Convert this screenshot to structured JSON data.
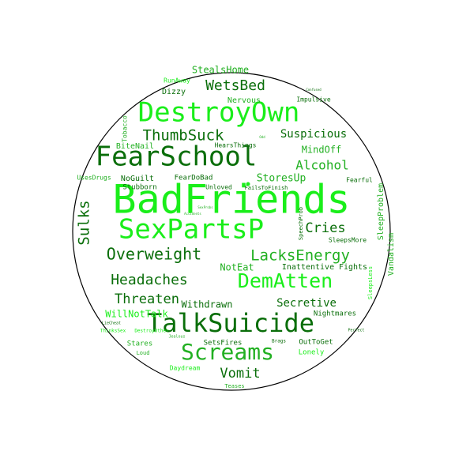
{
  "colors": {
    "bright": "#1aee1a",
    "mid": "#22b022",
    "dark": "#0a6e0a",
    "outline": "#000000"
  },
  "words": [
    {
      "text": "BadFriends",
      "color": "bright"
    },
    {
      "text": "DestroyOwn",
      "color": "bright"
    },
    {
      "text": "FearSchool",
      "color": "dark"
    },
    {
      "text": "SexPartsP",
      "color": "bright"
    },
    {
      "text": "TalkSuicide",
      "color": "dark"
    },
    {
      "text": "Screams",
      "color": "mid"
    },
    {
      "text": "DemAtten",
      "color": "bright"
    },
    {
      "text": "LacksEnergy",
      "color": "mid"
    },
    {
      "text": "Overweight",
      "color": "dark"
    },
    {
      "text": "ThumbSuck",
      "color": "dark"
    },
    {
      "text": "WetsBed",
      "color": "dark"
    },
    {
      "text": "Headaches",
      "color": "dark"
    },
    {
      "text": "Threaten",
      "color": "dark"
    },
    {
      "text": "Cries",
      "color": "dark"
    },
    {
      "text": "Alcohol",
      "color": "mid"
    },
    {
      "text": "Sulks",
      "color": "dark"
    },
    {
      "text": "Vomit",
      "color": "dark"
    },
    {
      "text": "Suspicious",
      "color": "dark"
    },
    {
      "text": "Secretive",
      "color": "dark"
    },
    {
      "text": "StoresUp",
      "color": "mid"
    },
    {
      "text": "MindOff",
      "color": "mid"
    },
    {
      "text": "WillNotTalk",
      "color": "bright"
    },
    {
      "text": "Withdrawn",
      "color": "dark"
    },
    {
      "text": "StealsHome",
      "color": "mid"
    },
    {
      "text": "Nervous",
      "color": "mid"
    },
    {
      "text": "Dizzy",
      "color": "dark"
    },
    {
      "text": "Impulsive",
      "color": "dark"
    },
    {
      "text": "Tobacco",
      "color": "mid"
    },
    {
      "text": "BiteNail",
      "color": "mid"
    },
    {
      "text": "HearsThings",
      "color": "dark"
    },
    {
      "text": "NoGuilt",
      "color": "dark"
    },
    {
      "text": "FearDoBad",
      "color": "dark"
    },
    {
      "text": "Stubborn",
      "color": "dark"
    },
    {
      "text": "Unloved",
      "color": "dark"
    },
    {
      "text": "FailsToFinish",
      "color": "dark"
    },
    {
      "text": "UsesDrugs",
      "color": "mid"
    },
    {
      "text": "Fearful",
      "color": "dark"
    },
    {
      "text": "SleepProblem",
      "color": "mid"
    },
    {
      "text": "Vandalism",
      "color": "mid"
    },
    {
      "text": "SpeechProb",
      "color": "dark"
    },
    {
      "text": "SleepsMore",
      "color": "dark"
    },
    {
      "text": "NotEat",
      "color": "mid"
    },
    {
      "text": "Inattentive",
      "color": "dark"
    },
    {
      "text": "Fights",
      "color": "dark"
    },
    {
      "text": "Nightmares",
      "color": "dark"
    },
    {
      "text": "Stares",
      "color": "mid"
    },
    {
      "text": "SetsFires",
      "color": "dark"
    },
    {
      "text": "OutToGet",
      "color": "dark"
    },
    {
      "text": "Lonely",
      "color": "bright"
    },
    {
      "text": "Loud",
      "color": "mid"
    },
    {
      "text": "Daydream",
      "color": "bright"
    },
    {
      "text": "Teases",
      "color": "mid"
    },
    {
      "text": "RunAway",
      "color": "bright"
    },
    {
      "text": "ThinksSex",
      "color": "bright"
    },
    {
      "text": "DestroyOther",
      "color": "bright"
    },
    {
      "text": "Jealous",
      "color": "mid"
    },
    {
      "text": "LieCheat",
      "color": "dark"
    },
    {
      "text": "Brags",
      "color": "dark"
    },
    {
      "text": "Perfect",
      "color": "dark"
    },
    {
      "text": "SleepsLess",
      "color": "bright"
    },
    {
      "text": "Confused",
      "color": "dark"
    },
    {
      "text": "Accidents",
      "color": "mid"
    },
    {
      "text": "SexProbs",
      "color": "mid"
    },
    {
      "text": "Odd",
      "color": "mid"
    }
  ]
}
